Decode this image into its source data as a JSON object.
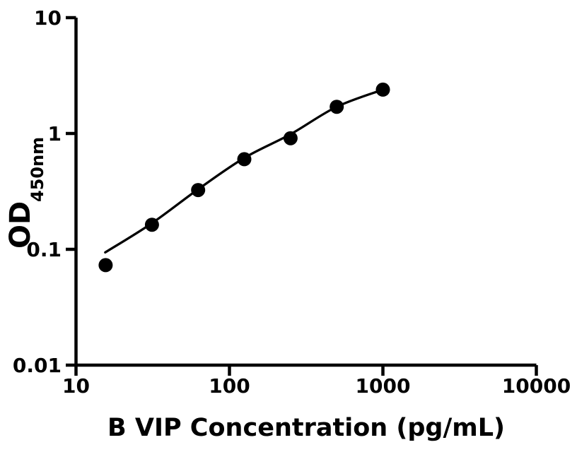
{
  "figure": {
    "background": "#ffffff",
    "axis_color": "#000000"
  },
  "chart_data": {
    "type": "scatter",
    "title": "",
    "xlabel": "B VIP Concentration (pg/mL)",
    "ylabel_main": "OD",
    "ylabel_sub": "450nm",
    "x_scale": "log",
    "y_scale": "log",
    "xlim": [
      10,
      10000
    ],
    "ylim": [
      0.01,
      10
    ],
    "grid": false,
    "legend": "none",
    "x_ticks": [
      {
        "value": 10,
        "label": "10"
      },
      {
        "value": 100,
        "label": "100"
      },
      {
        "value": 1000,
        "label": "1000"
      },
      {
        "value": 10000,
        "label": "10000"
      }
    ],
    "y_ticks": [
      {
        "value": 0.01,
        "label": "0.01"
      },
      {
        "value": 0.1,
        "label": "0.1"
      },
      {
        "value": 1,
        "label": "1"
      },
      {
        "value": 10,
        "label": "10"
      }
    ],
    "series": [
      {
        "name": "standard-curve-points",
        "marker": "circle",
        "marker_color": "#000000",
        "points": [
          {
            "x": 15.6,
            "y": 0.073
          },
          {
            "x": 31.25,
            "y": 0.163
          },
          {
            "x": 62.5,
            "y": 0.325
          },
          {
            "x": 125,
            "y": 0.6
          },
          {
            "x": 250,
            "y": 0.91
          },
          {
            "x": 500,
            "y": 1.7
          },
          {
            "x": 1000,
            "y": 2.39
          }
        ]
      }
    ],
    "fit_curve": {
      "name": "four-parameter-logistic-fit",
      "line_color": "#000000",
      "points": [
        {
          "x": 15.5,
          "y": 0.094
        },
        {
          "x": 31.25,
          "y": 0.168
        },
        {
          "x": 62.5,
          "y": 0.33
        },
        {
          "x": 125,
          "y": 0.615
        },
        {
          "x": 250,
          "y": 0.985
        },
        {
          "x": 500,
          "y": 1.7
        },
        {
          "x": 1000,
          "y": 2.39
        }
      ]
    }
  }
}
